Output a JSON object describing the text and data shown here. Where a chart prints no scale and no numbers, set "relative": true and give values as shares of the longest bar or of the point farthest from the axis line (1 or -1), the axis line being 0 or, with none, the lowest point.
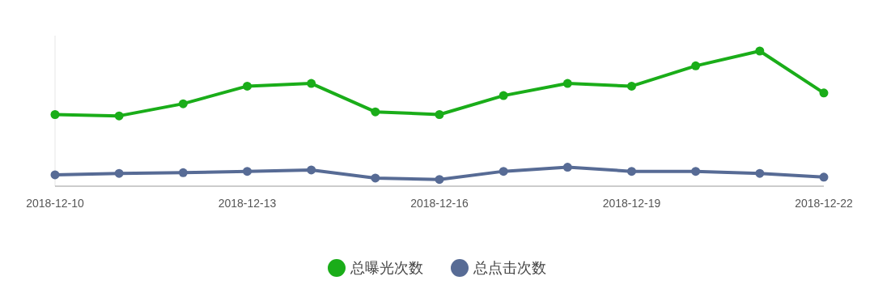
{
  "chart_data": {
    "type": "line",
    "relative": true,
    "marker": "circle",
    "line_style": "solid",
    "legend": "bottom",
    "categories": [
      "2018-12-10",
      null,
      null,
      "2018-12-13",
      null,
      null,
      "2018-12-16",
      null,
      null,
      "2018-12-19",
      null,
      null,
      "2018-12-22"
    ],
    "series": [
      {
        "name": "总曝光次数",
        "color": "#1aad19",
        "values": [
          0.53,
          0.52,
          0.61,
          0.74,
          0.76,
          0.55,
          0.53,
          0.67,
          0.76,
          0.74,
          0.89,
          1,
          0.69
        ]
      },
      {
        "name": "总点击次数",
        "color": "#576b95",
        "values": [
          0.084,
          0.095,
          0.1,
          0.11,
          0.12,
          0.06,
          0.05,
          0.11,
          0.14,
          0.11,
          0.11,
          0.095,
          0.067
        ]
      }
    ]
  }
}
